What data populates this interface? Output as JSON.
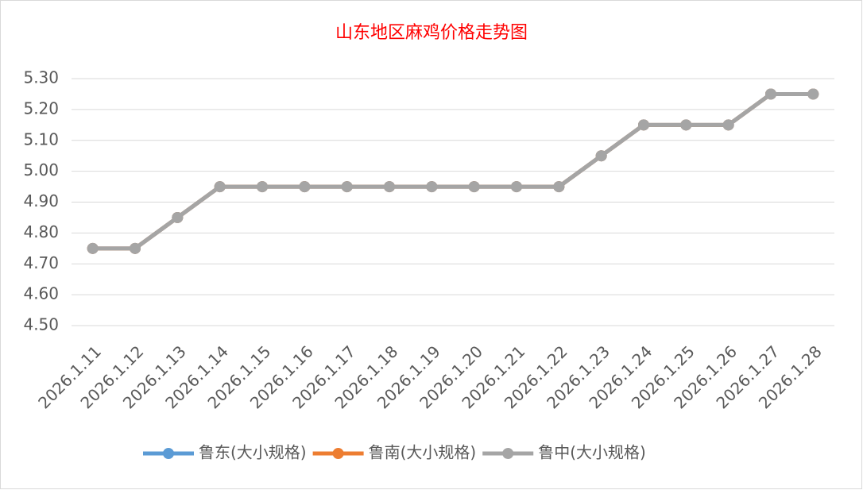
{
  "chart_data": {
    "type": "line",
    "title": "山东地区麻鸡价格走势图",
    "categories": [
      "2026.1.11",
      "2026.1.12",
      "2026.1.13",
      "2026.1.14",
      "2026.1.15",
      "2026.1.16",
      "2026.1.17",
      "2026.1.18",
      "2026.1.19",
      "2026.1.20",
      "2026.1.21",
      "2026.1.22",
      "2026.1.23",
      "2026.1.24",
      "2026.1.25",
      "2026.1.26",
      "2026.1.27",
      "2026.1.28"
    ],
    "series": [
      {
        "name": "鲁东(大小规格)",
        "color": "#5b9bd5",
        "values": [
          4.75,
          4.75,
          4.85,
          4.95,
          4.95,
          4.95,
          4.95,
          4.95,
          4.95,
          4.95,
          4.95,
          4.95,
          5.05,
          5.15,
          5.15,
          5.15,
          5.25,
          5.25
        ]
      },
      {
        "name": "鲁南(大小规格)",
        "color": "#ed7d31",
        "values": [
          4.75,
          4.75,
          4.85,
          4.95,
          4.95,
          4.95,
          4.95,
          4.95,
          4.95,
          4.95,
          4.95,
          4.95,
          5.05,
          5.15,
          5.15,
          5.15,
          5.25,
          5.25
        ]
      },
      {
        "name": "鲁中(大小规格)",
        "color": "#a5a5a5",
        "values": [
          4.75,
          4.75,
          4.85,
          4.95,
          4.95,
          4.95,
          4.95,
          4.95,
          4.95,
          4.95,
          4.95,
          4.95,
          5.05,
          5.15,
          5.15,
          5.15,
          5.25,
          5.25
        ]
      }
    ],
    "ylim": [
      4.5,
      5.3
    ],
    "yticks": [
      {
        "value": 4.5,
        "label": "4.50"
      },
      {
        "value": 4.6,
        "label": "4.60"
      },
      {
        "value": 4.7,
        "label": "4.70"
      },
      {
        "value": 4.8,
        "label": "4.80"
      },
      {
        "value": 4.9,
        "label": "4.90"
      },
      {
        "value": 5.0,
        "label": "5.00"
      },
      {
        "value": 5.1,
        "label": "5.10"
      },
      {
        "value": 5.2,
        "label": "5.20"
      },
      {
        "value": 5.3,
        "label": "5.30"
      }
    ],
    "grid": true,
    "legend": "bottom"
  }
}
